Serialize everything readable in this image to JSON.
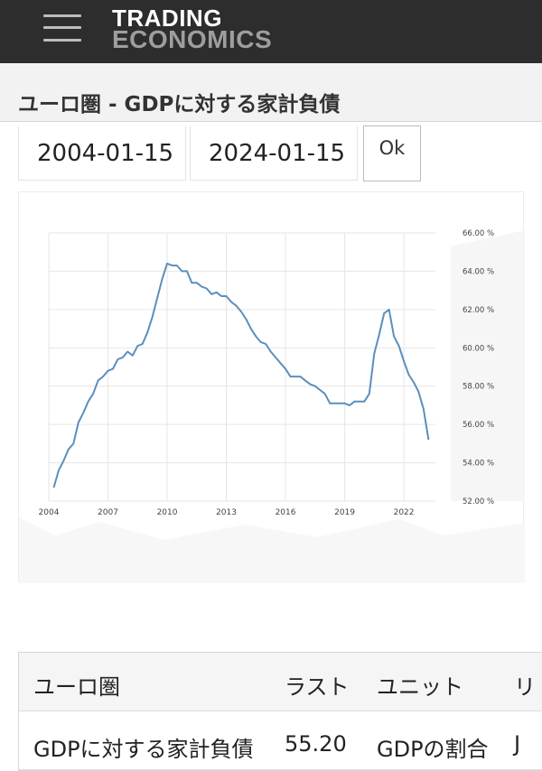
{
  "header": {
    "brand_line1": "TRADING",
    "brand_line2": "ECONOMICS",
    "menu_icon": "hamburger-menu-icon"
  },
  "page": {
    "title": "ユーロ圏 - GDPに対する家計負債"
  },
  "date_range": {
    "start": "2004-01-15",
    "end": "2024-01-15",
    "ok_label": "Ok"
  },
  "chart_data": {
    "type": "line",
    "title": "",
    "xlabel": "",
    "ylabel": "",
    "xlim": [
      2004,
      2023.6
    ],
    "ylim": [
      52,
      66
    ],
    "x_ticks": [
      2004,
      2007,
      2010,
      2013,
      2016,
      2019,
      2022
    ],
    "y_ticks": [
      "52.00 %",
      "54.00 %",
      "56.00 %",
      "58.00 %",
      "60.00 %",
      "62.00 %",
      "64.00 %",
      "66.00 %"
    ],
    "y_tick_values": [
      52,
      54,
      56,
      58,
      60,
      62,
      64,
      66
    ],
    "grid": true,
    "color": "#5b8fbd",
    "series": [
      {
        "x": [
          2004.25,
          2004.5,
          2004.75,
          2005.0,
          2005.25,
          2005.5,
          2005.75,
          2006.0,
          2006.25,
          2006.5,
          2006.75,
          2007.0,
          2007.25,
          2007.5,
          2007.75,
          2008.0,
          2008.25,
          2008.5,
          2008.75,
          2009.0,
          2009.25,
          2009.5,
          2009.75,
          2010.0,
          2010.25,
          2010.5,
          2010.75,
          2011.0,
          2011.25,
          2011.5,
          2011.75,
          2012.0,
          2012.25,
          2012.5,
          2012.75,
          2013.0,
          2013.25,
          2013.5,
          2013.75,
          2014.0,
          2014.25,
          2014.5,
          2014.75,
          2015.0,
          2015.25,
          2015.5,
          2015.75,
          2016.0,
          2016.25,
          2016.5,
          2016.75,
          2017.0,
          2017.25,
          2017.5,
          2017.75,
          2018.0,
          2018.25,
          2018.5,
          2018.75,
          2019.0,
          2019.25,
          2019.5,
          2019.75,
          2020.0,
          2020.25,
          2020.5,
          2020.75,
          2021.0,
          2021.25,
          2021.5,
          2021.75,
          2022.0,
          2022.25,
          2022.5,
          2022.75,
          2023.0,
          2023.25
        ],
        "values": [
          52.7,
          53.6,
          54.1,
          54.7,
          55.0,
          56.1,
          56.6,
          57.2,
          57.6,
          58.3,
          58.5,
          58.8,
          58.9,
          59.4,
          59.5,
          59.8,
          59.6,
          60.1,
          60.2,
          60.8,
          61.6,
          62.6,
          63.6,
          64.4,
          64.3,
          64.3,
          64.0,
          64.0,
          63.4,
          63.4,
          63.2,
          63.1,
          62.8,
          62.9,
          62.7,
          62.7,
          62.4,
          62.2,
          61.9,
          61.5,
          61.0,
          60.6,
          60.3,
          60.2,
          59.8,
          59.5,
          59.2,
          58.9,
          58.5,
          58.5,
          58.5,
          58.3,
          58.1,
          58.0,
          57.8,
          57.6,
          57.1,
          57.1,
          57.1,
          57.1,
          57.0,
          57.2,
          57.2,
          57.2,
          57.6,
          59.7,
          60.7,
          61.8,
          62.0,
          60.6,
          60.1,
          59.3,
          58.6,
          58.2,
          57.7,
          56.8,
          55.2
        ]
      }
    ]
  },
  "table": {
    "headers": [
      "ユーロ圏",
      "ラスト",
      "ユニット",
      "リ"
    ],
    "rows": [
      [
        "GDPに対する家計負債",
        "55.20",
        "GDPの割合",
        "J"
      ]
    ]
  }
}
